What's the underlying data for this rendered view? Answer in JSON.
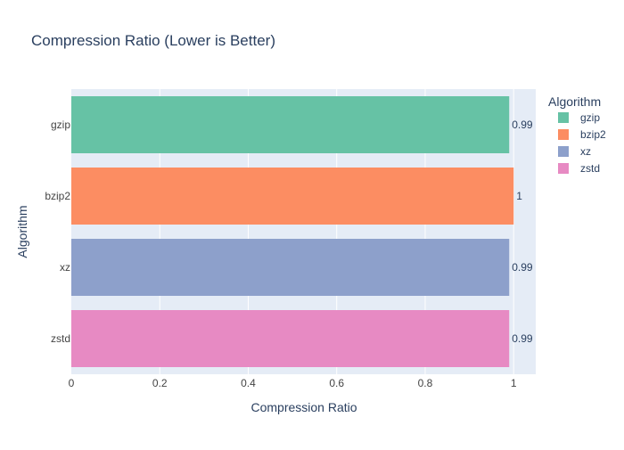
{
  "chart_data": {
    "type": "bar",
    "orientation": "horizontal",
    "title": "Compression Ratio (Lower is Better)",
    "xlabel": "Compression Ratio",
    "ylabel": "Algorithm",
    "categories": [
      "gzip",
      "bzip2",
      "xz",
      "zstd"
    ],
    "values": [
      0.99,
      1.0,
      0.99,
      0.99
    ],
    "data_labels": [
      "0.99",
      "1",
      "0.99",
      "0.99"
    ],
    "colors": [
      "#66c2a5",
      "#fc8d62",
      "#8da0cb",
      "#e78ac3"
    ],
    "xlim": [
      0,
      1.05
    ],
    "xticks": [
      0,
      0.2,
      0.4,
      0.6,
      0.8,
      1
    ],
    "xtick_labels": [
      "0",
      "0.2",
      "0.4",
      "0.6",
      "0.8",
      "1"
    ],
    "grid": true,
    "legend": {
      "title": "Algorithm",
      "position": "top-right",
      "items": [
        "gzip",
        "bzip2",
        "xz",
        "zstd"
      ]
    }
  },
  "style": {
    "plot_bg": "#e5ecf6",
    "grid_color": "#ffffff",
    "text_color": "#2a3f5f",
    "tick_color": "#444444"
  }
}
